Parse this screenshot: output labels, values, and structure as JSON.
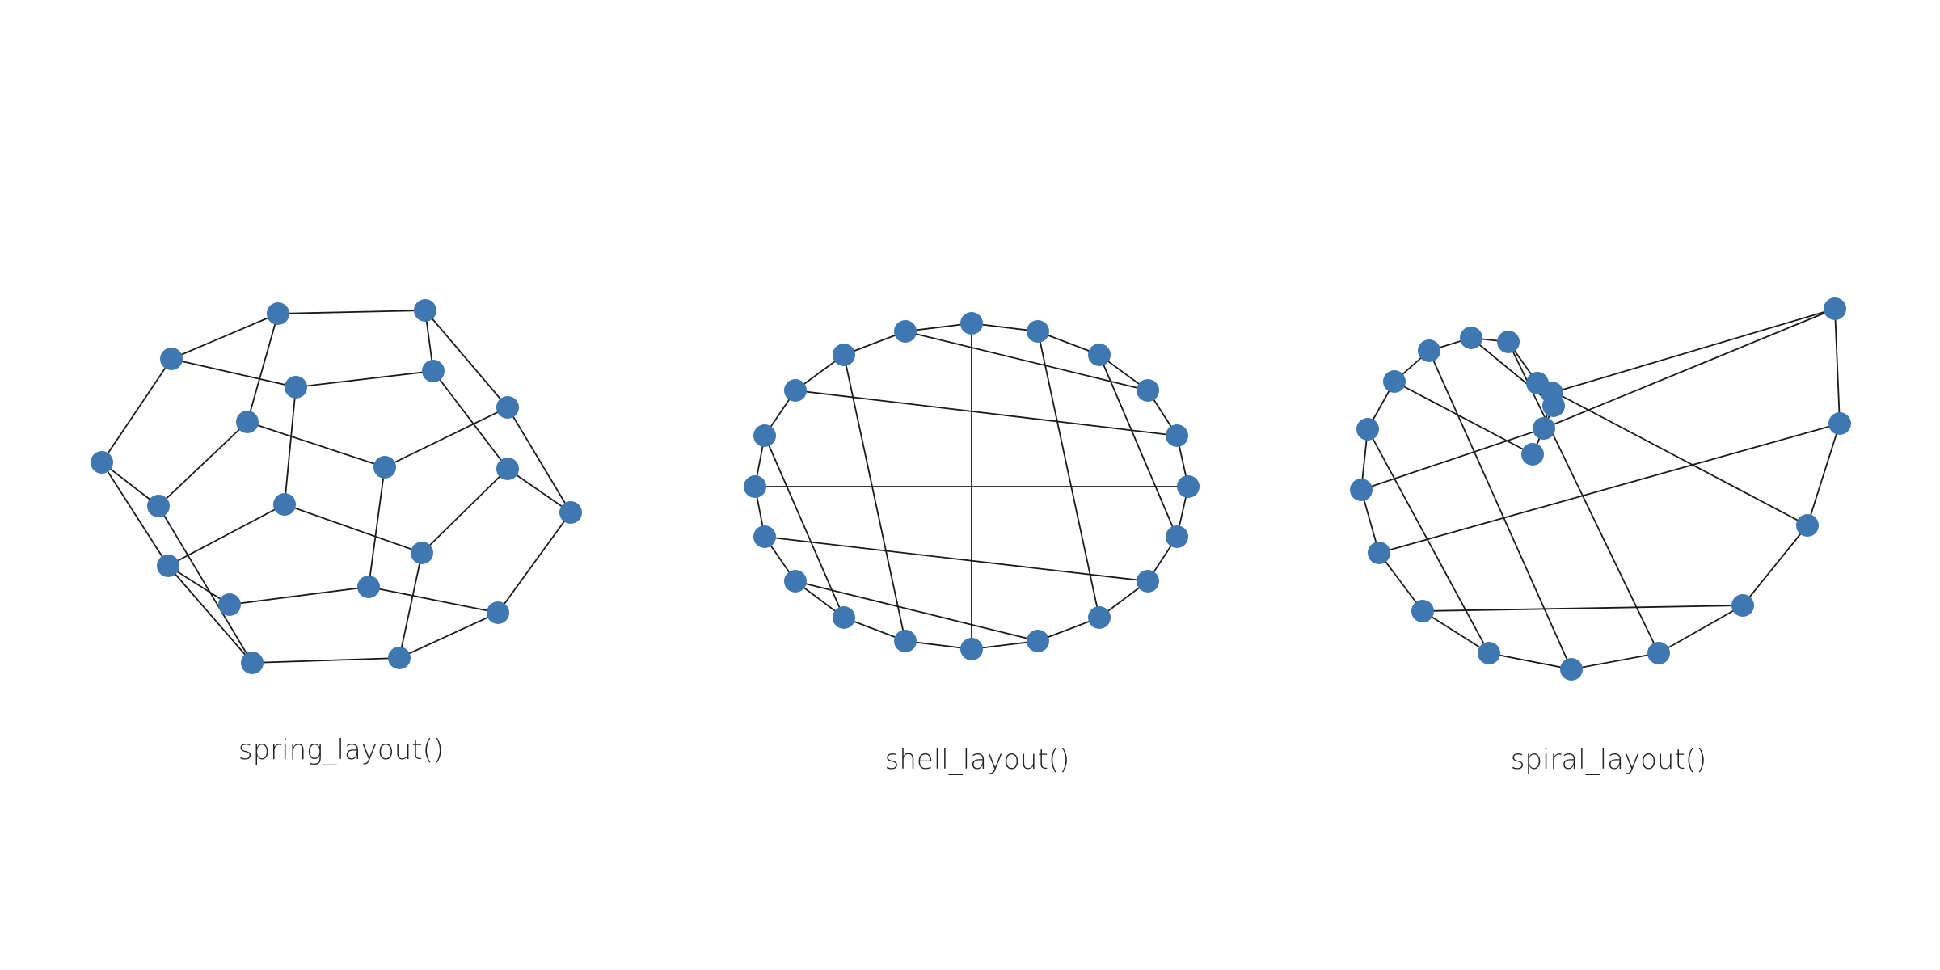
{
  "style": {
    "node_color": "#3f77b0",
    "edge_color": "#1a1a1a",
    "background": "#ffffff"
  },
  "panels": [
    {
      "caption": "spring_layout()",
      "graph": "dodecahedral",
      "node_count": 20,
      "edge_count": 30
    },
    {
      "caption": "shell_layout()",
      "graph": "dodecahedral",
      "node_count": 20,
      "edge_count": 30
    },
    {
      "caption": "spiral_layout()",
      "graph": "dodecahedral",
      "node_count": 20,
      "edge_count": 30
    }
  ]
}
